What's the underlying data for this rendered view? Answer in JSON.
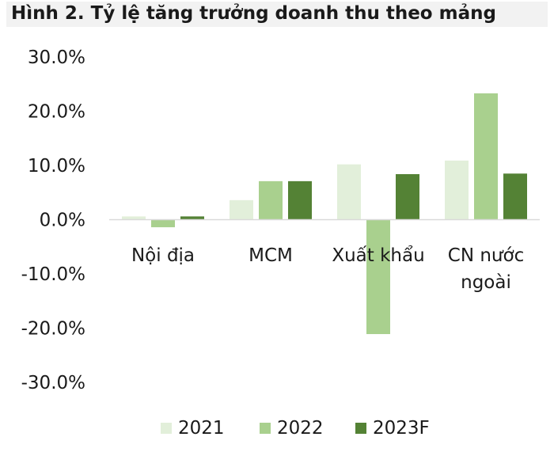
{
  "title": "Hình 2. Tỷ lệ tăng trưởng doanh thu theo mảng",
  "chart_data": {
    "type": "bar",
    "title": "Hình 2. Tỷ lệ tăng trưởng doanh thu theo mảng",
    "categories": [
      [
        "Nội địa"
      ],
      [
        "MCM"
      ],
      [
        "Xuất khẩu"
      ],
      [
        "CN nước",
        "ngoài"
      ]
    ],
    "series": [
      {
        "name": "2021",
        "color": "#e2efda",
        "values": [
          0.6,
          3.6,
          10.2,
          10.9
        ]
      },
      {
        "name": "2022",
        "color": "#a9d08e",
        "values": [
          -1.4,
          7.1,
          -21.1,
          23.3
        ]
      },
      {
        "name": "2023F",
        "color": "#548235",
        "values": [
          0.6,
          7.1,
          8.4,
          8.5
        ]
      }
    ],
    "yticks": [
      "30.0%",
      "20.0%",
      "10.0%",
      "0.0%",
      "-10.0%",
      "-20.0%",
      "-30.0%"
    ],
    "ylim": [
      -30,
      30
    ],
    "legend": "bottom",
    "grid": false
  }
}
